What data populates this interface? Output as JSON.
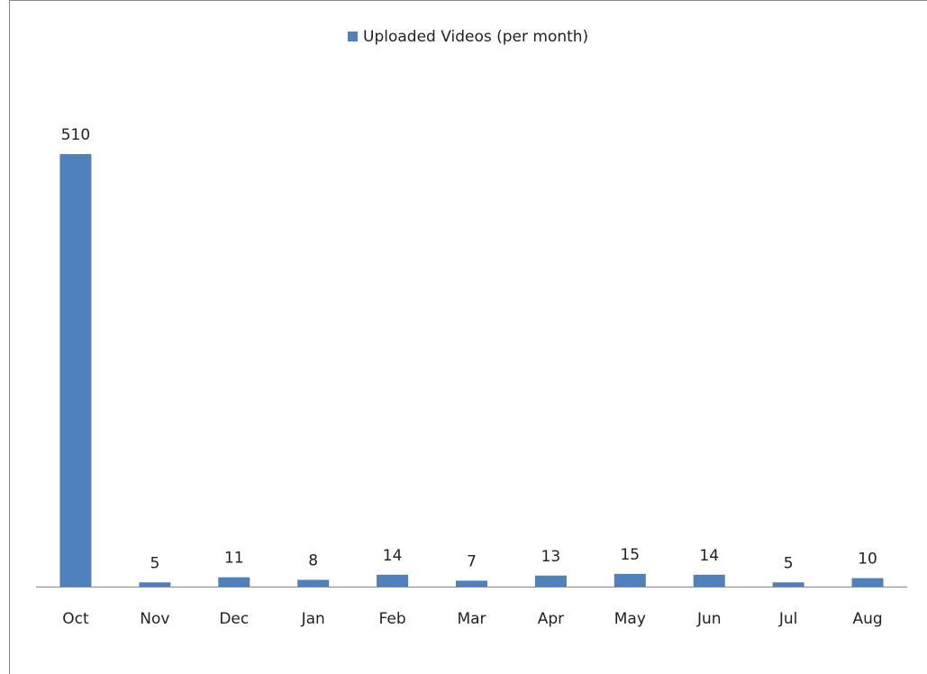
{
  "chart_data": {
    "type": "bar",
    "categories": [
      "Oct",
      "Nov",
      "Dec",
      "Jan",
      "Feb",
      "Mar",
      "Apr",
      "May",
      "Jun",
      "Jul",
      "Aug"
    ],
    "series": [
      {
        "name": "Uploaded Videos (per month)",
        "color": "#4f81bd",
        "values": [
          510,
          5,
          11,
          8,
          14,
          7,
          13,
          15,
          14,
          5,
          10
        ]
      }
    ],
    "legend": "top",
    "data_labels": true
  }
}
